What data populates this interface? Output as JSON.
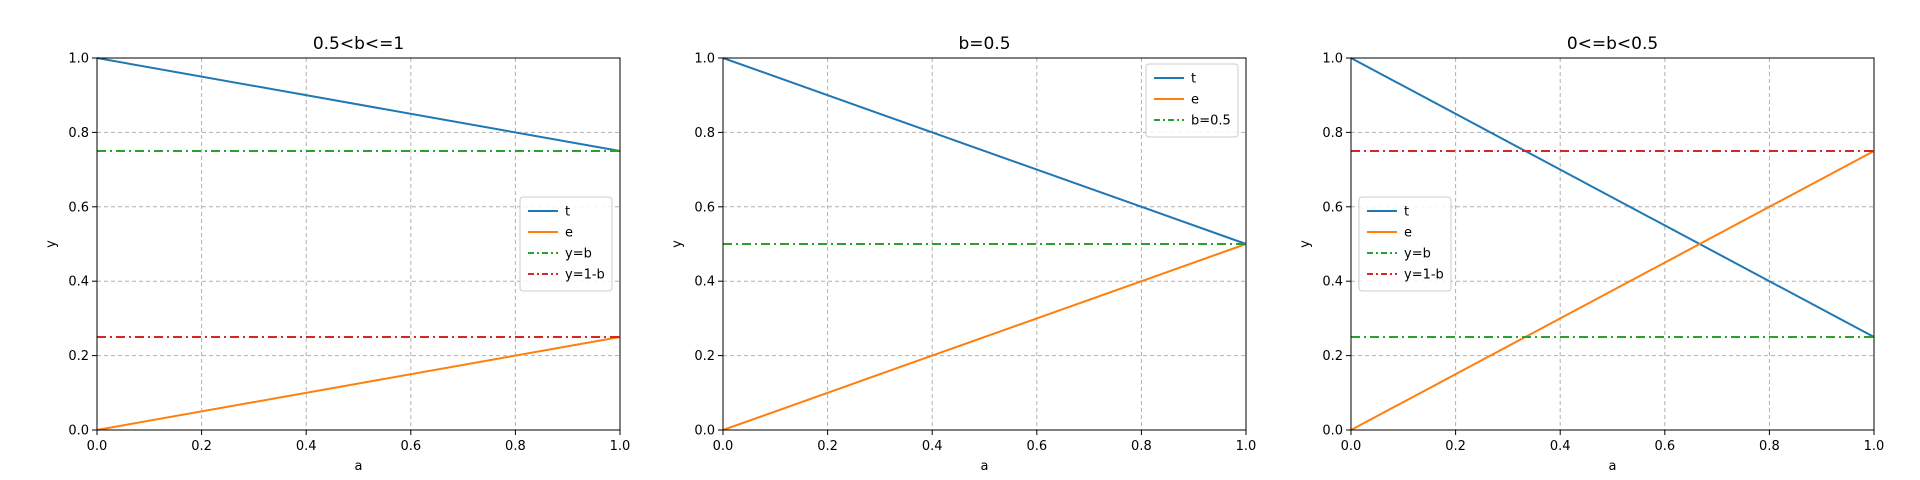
{
  "colors": {
    "t": "#1f77b4",
    "e": "#ff7f0e",
    "y_eq_b": "#2ca02c",
    "y_eq_1mb": "#d62728",
    "grid": "#b0b0b0",
    "legend_border": "#cccccc"
  },
  "chart_data": [
    {
      "type": "line",
      "title": "0.5<b<=1",
      "xlabel": "a",
      "ylabel": "y",
      "xlim": [
        0,
        1
      ],
      "ylim": [
        0,
        1
      ],
      "x_ticks": [
        "0.0",
        "0.2",
        "0.4",
        "0.6",
        "0.8",
        "1.0"
      ],
      "y_ticks": [
        "0.0",
        "0.2",
        "0.4",
        "0.6",
        "0.8",
        "1.0"
      ],
      "grid": true,
      "legend_position": "center-right",
      "series": [
        {
          "name": "t",
          "style": "solid",
          "color": "#1f77b4",
          "x": [
            0,
            1
          ],
          "y": [
            1.0,
            0.75
          ]
        },
        {
          "name": "e",
          "style": "solid",
          "color": "#ff7f0e",
          "x": [
            0,
            1
          ],
          "y": [
            0.0,
            0.25
          ]
        },
        {
          "name": "y=b",
          "style": "dashdot",
          "color": "#2ca02c",
          "x": [
            0,
            1
          ],
          "y": [
            0.75,
            0.75
          ]
        },
        {
          "name": "y=1-b",
          "style": "dashdot",
          "color": "#d62728",
          "x": [
            0,
            1
          ],
          "y": [
            0.25,
            0.25
          ]
        }
      ]
    },
    {
      "type": "line",
      "title": "b=0.5",
      "xlabel": "a",
      "ylabel": "y",
      "xlim": [
        0,
        1
      ],
      "ylim": [
        0,
        1
      ],
      "x_ticks": [
        "0.0",
        "0.2",
        "0.4",
        "0.6",
        "0.8",
        "1.0"
      ],
      "y_ticks": [
        "0.0",
        "0.2",
        "0.4",
        "0.6",
        "0.8",
        "1.0"
      ],
      "grid": true,
      "legend_position": "top-right",
      "series": [
        {
          "name": "t",
          "style": "solid",
          "color": "#1f77b4",
          "x": [
            0,
            1
          ],
          "y": [
            1.0,
            0.5
          ]
        },
        {
          "name": "e",
          "style": "solid",
          "color": "#ff7f0e",
          "x": [
            0,
            1
          ],
          "y": [
            0.0,
            0.5
          ]
        },
        {
          "name": "b=0.5",
          "style": "dashdot",
          "color": "#2ca02c",
          "x": [
            0,
            1
          ],
          "y": [
            0.5,
            0.5
          ]
        }
      ]
    },
    {
      "type": "line",
      "title": "0<=b<0.5",
      "xlabel": "a",
      "ylabel": "y",
      "xlim": [
        0,
        1
      ],
      "ylim": [
        0,
        1
      ],
      "x_ticks": [
        "0.0",
        "0.2",
        "0.4",
        "0.6",
        "0.8",
        "1.0"
      ],
      "y_ticks": [
        "0.0",
        "0.2",
        "0.4",
        "0.6",
        "0.8",
        "1.0"
      ],
      "grid": true,
      "legend_position": "center-left",
      "series": [
        {
          "name": "t",
          "style": "solid",
          "color": "#1f77b4",
          "x": [
            0,
            1
          ],
          "y": [
            1.0,
            0.25
          ]
        },
        {
          "name": "e",
          "style": "solid",
          "color": "#ff7f0e",
          "x": [
            0,
            1
          ],
          "y": [
            0.0,
            0.75
          ]
        },
        {
          "name": "y=b",
          "style": "dashdot",
          "color": "#2ca02c",
          "x": [
            0,
            1
          ],
          "y": [
            0.25,
            0.25
          ]
        },
        {
          "name": "y=1-b",
          "style": "dashdot",
          "color": "#d62728",
          "x": [
            0,
            1
          ],
          "y": [
            0.75,
            0.75
          ]
        }
      ]
    }
  ]
}
